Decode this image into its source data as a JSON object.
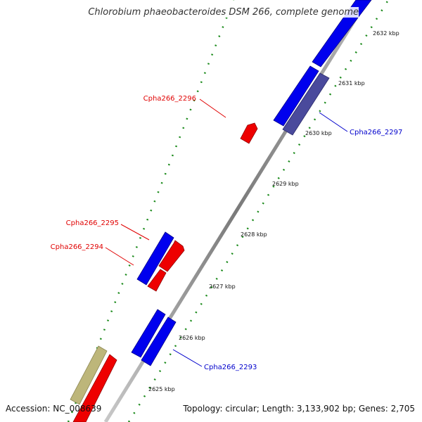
{
  "map": {
    "title": "Chlorobium phaeobacteroides DSM 266, complete genome",
    "accession": "Accession: NC_008639",
    "summary": "Topology: circular; Length: 3,133,902 bp; Genes: 2,705"
  },
  "scale_ticks": [
    {
      "kbp": 2625,
      "label": "2625 kbp"
    },
    {
      "kbp": 2626,
      "label": "2626 kbp"
    },
    {
      "kbp": 2627,
      "label": "2627 kbp"
    },
    {
      "kbp": 2628,
      "label": "2628 kbp"
    },
    {
      "kbp": 2629,
      "label": "2629 kbp"
    },
    {
      "kbp": 2630,
      "label": "2630 kbp"
    },
    {
      "kbp": 2631,
      "label": "2631 kbp"
    },
    {
      "kbp": 2632,
      "label": "2632 kbp"
    }
  ],
  "gene_labels": [
    {
      "name": "Cpha266_2296",
      "color": "#e00000"
    },
    {
      "name": "Cpha266_2295",
      "color": "#e00000"
    },
    {
      "name": "Cpha266_2294",
      "color": "#e00000"
    },
    {
      "name": "Cpha266_2297",
      "color": "#0000cc"
    },
    {
      "name": "Cpha266_2293",
      "color": "#0000cc"
    }
  ],
  "colors": {
    "forward_gene": "#0000ee",
    "reverse_gene": "#ee0000",
    "selected_gene": "#4a4a9c",
    "other_feature": "#bdb67a",
    "dotted_track": "#1a8a1a",
    "backbone": "#8a8a8a"
  }
}
